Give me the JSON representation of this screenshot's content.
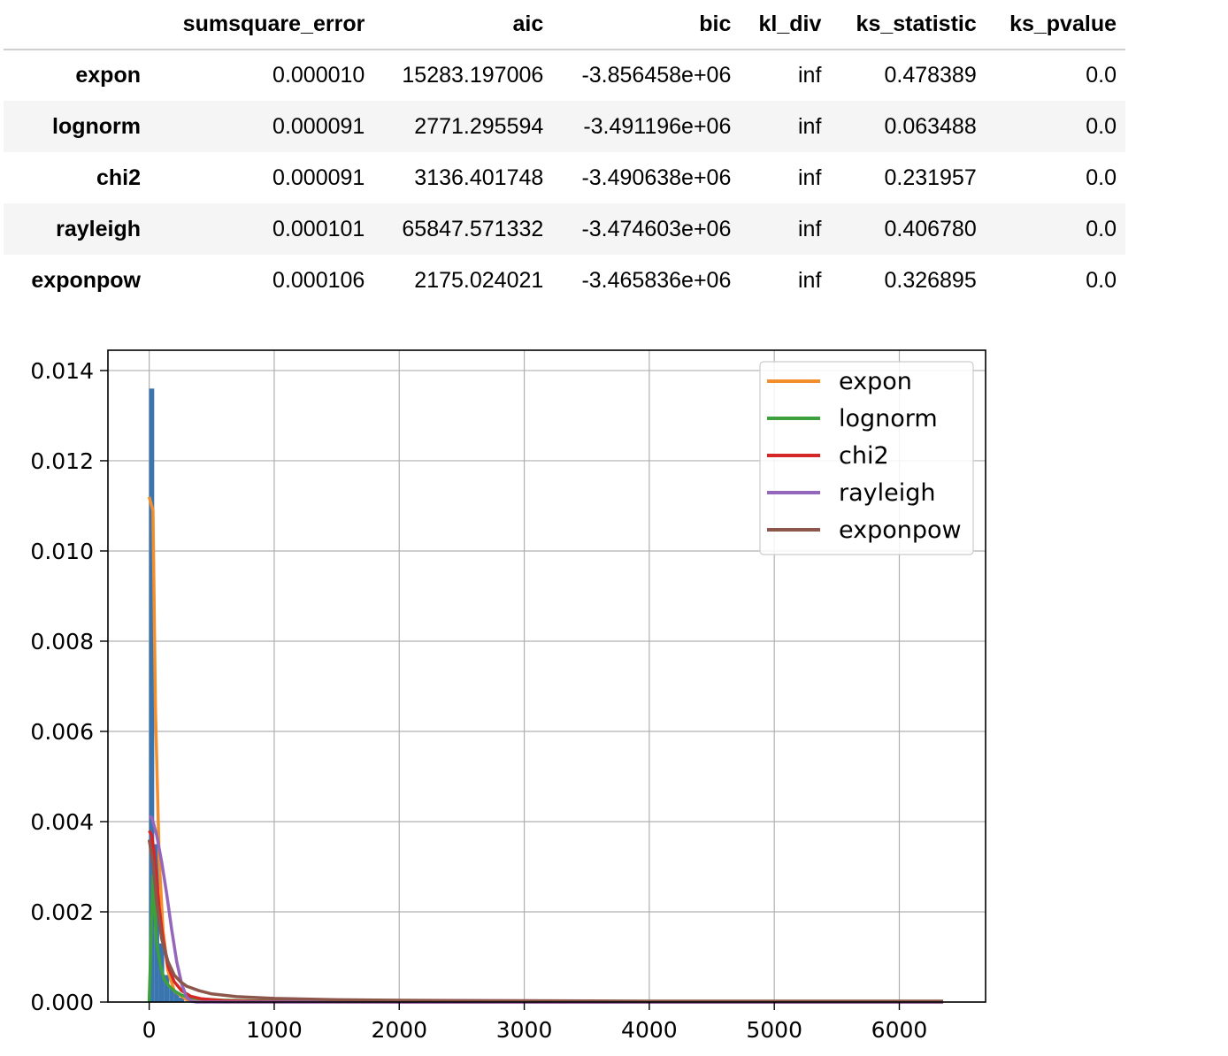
{
  "table": {
    "columns": [
      "",
      "sumsquare_error",
      "aic",
      "bic",
      "kl_div",
      "ks_statistic",
      "ks_pvalue"
    ],
    "rows": [
      {
        "index": "expon",
        "cells": [
          "0.000010",
          "15283.197006",
          "-3.856458e+06",
          "inf",
          "0.478389",
          "0.0"
        ]
      },
      {
        "index": "lognorm",
        "cells": [
          "0.000091",
          "2771.295594",
          "-3.491196e+06",
          "inf",
          "0.063488",
          "0.0"
        ]
      },
      {
        "index": "chi2",
        "cells": [
          "0.000091",
          "3136.401748",
          "-3.490638e+06",
          "inf",
          "0.231957",
          "0.0"
        ]
      },
      {
        "index": "rayleigh",
        "cells": [
          "0.000101",
          "65847.571332",
          "-3.474603e+06",
          "inf",
          "0.406780",
          "0.0"
        ]
      },
      {
        "index": "exponpow",
        "cells": [
          "0.000106",
          "2175.024021",
          "-3.465836e+06",
          "inf",
          "0.326895",
          "0.0"
        ]
      }
    ]
  },
  "chart_data": {
    "type": "line",
    "title": "",
    "xlabel": "",
    "ylabel": "",
    "xlim": [
      -330,
      6690
    ],
    "ylim": [
      0,
      0.01445
    ],
    "x_ticks": [
      0,
      1000,
      2000,
      3000,
      4000,
      5000,
      6000
    ],
    "x_tick_labels": [
      "0",
      "1000",
      "2000",
      "3000",
      "4000",
      "5000",
      "6000"
    ],
    "y_ticks": [
      0.0,
      0.002,
      0.004,
      0.006,
      0.008,
      0.01,
      0.012,
      0.014
    ],
    "y_tick_labels": [
      "0.000",
      "0.002",
      "0.004",
      "0.006",
      "0.008",
      "0.010",
      "0.012",
      "0.014"
    ],
    "grid": true,
    "legend_position": "top-right",
    "histogram": {
      "color": "#3a75b0",
      "bin_width": 40,
      "bins": [
        {
          "x0": 0,
          "density": 0.0136
        },
        {
          "x0": 40,
          "density": 0.0035
        },
        {
          "x0": 80,
          "density": 0.0013
        },
        {
          "x0": 120,
          "density": 0.0006
        },
        {
          "x0": 160,
          "density": 0.0003
        },
        {
          "x0": 200,
          "density": 0.0002
        },
        {
          "x0": 240,
          "density": 0.0001
        }
      ]
    },
    "series": [
      {
        "name": "expon",
        "color": "#f28e2b",
        "x": [
          0,
          30,
          50,
          80,
          110,
          150,
          200,
          300,
          400,
          600,
          1000,
          2000,
          4000,
          6350
        ],
        "y": [
          0.0112,
          0.0109,
          0.0065,
          0.0032,
          0.0016,
          0.0007,
          0.00025,
          5e-05,
          1e-05,
          0,
          0,
          0,
          0,
          0
        ]
      },
      {
        "name": "lognorm",
        "color": "#3ca03c",
        "x": [
          0,
          30,
          60,
          90,
          120,
          160,
          200,
          260,
          330,
          400,
          600,
          1000,
          2000,
          4000,
          6350
        ],
        "y": [
          0,
          0.0028,
          0.0013,
          0.0008,
          0.0005,
          0.00035,
          0.00025,
          0.00015,
          0.0001,
          7e-05,
          4e-05,
          2e-05,
          1e-05,
          0,
          0
        ]
      },
      {
        "name": "chi2",
        "color": "#d62728",
        "x": [
          0,
          20,
          40,
          60,
          80,
          110,
          150,
          200,
          260,
          330,
          420,
          600,
          1000,
          2000,
          4000,
          6350
        ],
        "y": [
          0.0038,
          0.0037,
          0.0033,
          0.0027,
          0.0021,
          0.0014,
          0.0008,
          0.00045,
          0.00025,
          0.00013,
          7e-05,
          3e-05,
          1e-05,
          0,
          0,
          0
        ]
      },
      {
        "name": "rayleigh",
        "color": "#9467bd",
        "x": [
          0,
          20,
          60,
          100,
          140,
          180,
          220,
          260,
          300,
          340,
          380,
          400,
          1000,
          2000,
          4000,
          6350
        ],
        "y": [
          0.0041,
          0.0041,
          0.0037,
          0.0031,
          0.0024,
          0.0016,
          0.0009,
          0.0004,
          0.0001,
          2e-05,
          0,
          0,
          0,
          0,
          0,
          0
        ]
      },
      {
        "name": "exponpow",
        "color": "#8c564b",
        "x": [
          0,
          30,
          60,
          100,
          150,
          200,
          250,
          300,
          400,
          500,
          700,
          1000,
          1500,
          2000,
          3000,
          4000,
          5000,
          6350
        ],
        "y": [
          0.0036,
          0.0031,
          0.0022,
          0.0014,
          0.0009,
          0.0006,
          0.00045,
          0.00035,
          0.00025,
          0.00018,
          0.00012,
          8e-05,
          5e-05,
          4e-05,
          3e-05,
          2e-05,
          2e-05,
          2e-05
        ]
      }
    ]
  }
}
